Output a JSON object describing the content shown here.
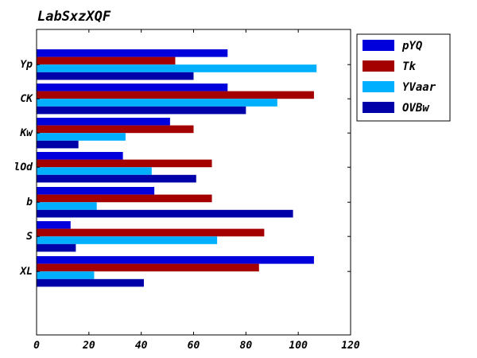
{
  "chart_data": {
    "type": "bar",
    "orientation": "horizontal",
    "title": "LabSxzXQF",
    "xlabel": "",
    "ylabel": "",
    "xlim": [
      0,
      120
    ],
    "xticks": [
      "0",
      "20",
      "40",
      "60",
      "80",
      "100",
      "120"
    ],
    "categories": [
      "Yp",
      "CK",
      "Kw",
      "lOd",
      "b",
      "S",
      "XL"
    ],
    "grid": false,
    "legend_position": "top-right-outside",
    "series": [
      {
        "name": "pYQ",
        "color": "#0000dd",
        "values": [
          73,
          73,
          51,
          33,
          45,
          13,
          106
        ]
      },
      {
        "name": "Tk",
        "color": "#a40000",
        "values": [
          53,
          106,
          60,
          67,
          67,
          87,
          85
        ]
      },
      {
        "name": "YVaar",
        "color": "#00b0ff",
        "values": [
          107,
          92,
          34,
          44,
          23,
          69,
          22
        ]
      },
      {
        "name": "OVBw",
        "color": "#0000a8",
        "values": [
          60,
          80,
          16,
          61,
          98,
          15,
          41
        ]
      }
    ]
  }
}
